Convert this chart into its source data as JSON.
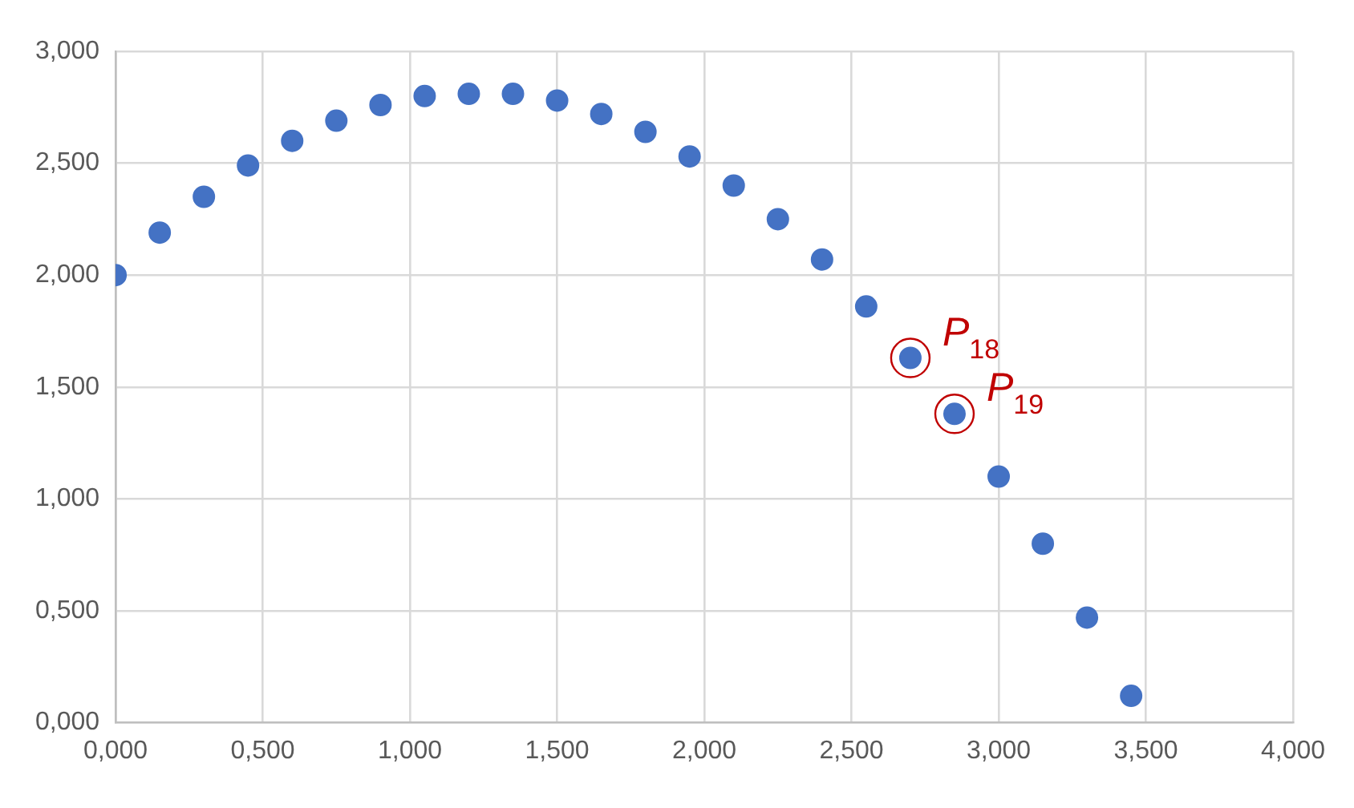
{
  "chart_data": {
    "type": "scatter",
    "x": [
      0,
      0.15,
      0.3,
      0.45,
      0.6,
      0.75,
      0.9,
      1.05,
      1.2,
      1.35,
      1.5,
      1.65,
      1.8,
      1.95,
      2.1,
      2.25,
      2.4,
      2.55,
      2.7,
      2.85,
      3.0,
      3.15,
      3.3,
      3.45
    ],
    "series": [
      {
        "color": "#4472c4",
        "values": [
          2.0,
          2.19,
          2.35,
          2.49,
          2.6,
          2.69,
          2.76,
          2.8,
          2.81,
          2.81,
          2.78,
          2.72,
          2.64,
          2.53,
          2.4,
          2.25,
          2.07,
          1.86,
          1.63,
          1.38,
          1.1,
          0.8,
          0.47,
          0.12
        ]
      }
    ],
    "xlim": [
      0,
      4
    ],
    "xticks": [
      {
        "value": 0,
        "label": "0,000"
      },
      {
        "value": 0.5,
        "label": "0,500"
      },
      {
        "value": 1,
        "label": "1,000"
      },
      {
        "value": 1.5,
        "label": "1,500"
      },
      {
        "value": 2,
        "label": "2,000"
      },
      {
        "value": 2.5,
        "label": "2,500"
      },
      {
        "value": 3,
        "label": "3,000"
      },
      {
        "value": 3.5,
        "label": "3,500"
      },
      {
        "value": 4,
        "label": "4,000"
      }
    ],
    "ylim": [
      0,
      3
    ],
    "yticks": [
      {
        "value": 0,
        "label": "0,000"
      },
      {
        "value": 0.5,
        "label": "0,500"
      },
      {
        "value": 1,
        "label": "1,000"
      },
      {
        "value": 1.5,
        "label": "1,500"
      },
      {
        "value": 2,
        "label": "2,000"
      },
      {
        "value": 2.5,
        "label": "2,500"
      },
      {
        "value": 3,
        "label": "3,000"
      }
    ],
    "annotations": [
      {
        "text": "P$_{18}$",
        "x": 2.7,
        "y": 1.63
      },
      {
        "text": "P$_{19}$",
        "x": 2.85,
        "y": 1.38
      }
    ],
    "grid": true,
    "legend": false,
    "marker": "circle"
  }
}
